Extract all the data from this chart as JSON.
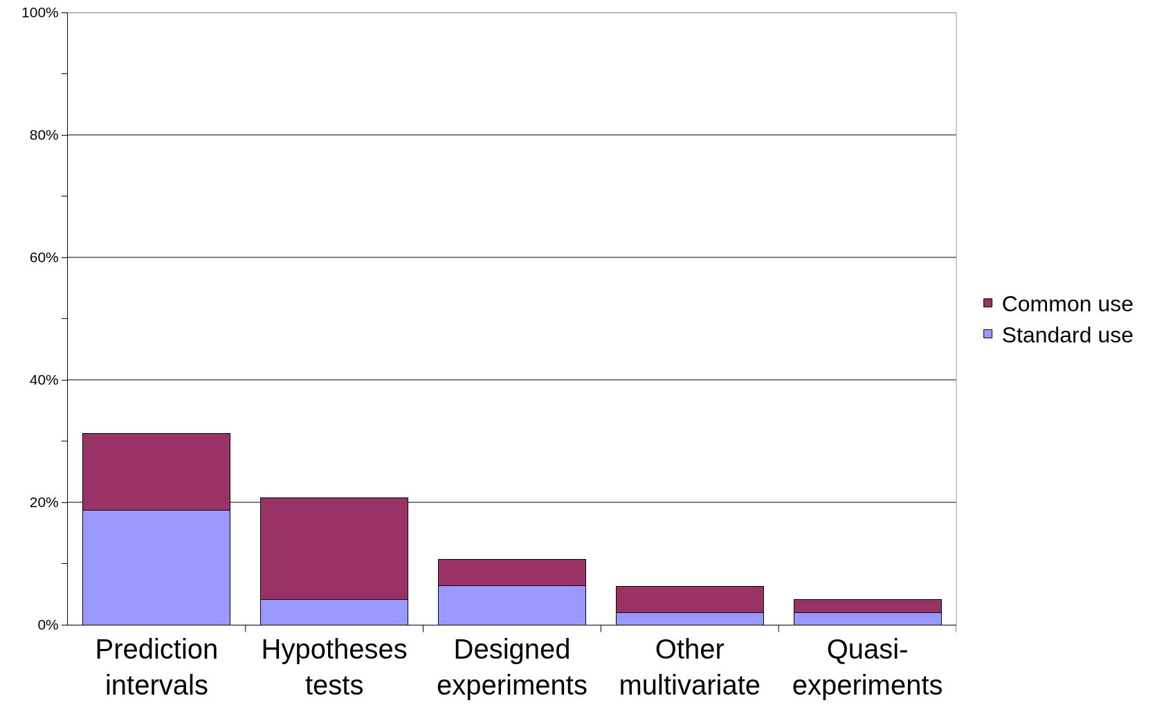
{
  "chart_data": {
    "type": "bar",
    "stacked": true,
    "categories": [
      "Prediction\nintervals",
      "Hypotheses\ntests",
      "Designed\nexperiments",
      "Other\nmultivariate",
      "Quasi-\nexperiments"
    ],
    "series": [
      {
        "name": "Standard use",
        "color": "#9999ff",
        "values": [
          18.7,
          4.1,
          6.4,
          2.0,
          2.0
        ]
      },
      {
        "name": "Common use",
        "color": "#993366",
        "values": [
          12.5,
          16.6,
          4.3,
          4.3,
          2.1
        ]
      }
    ],
    "ylim": [
      0,
      100
    ],
    "yticks": [
      {
        "value": 0,
        "label": "0%"
      },
      {
        "value": 10,
        "label": null
      },
      {
        "value": 20,
        "label": "20%"
      },
      {
        "value": 30,
        "label": null
      },
      {
        "value": 40,
        "label": "40%"
      },
      {
        "value": 50,
        "label": null
      },
      {
        "value": 60,
        "label": "60%"
      },
      {
        "value": 70,
        "label": null
      },
      {
        "value": 80,
        "label": "80%"
      },
      {
        "value": 90,
        "label": null
      },
      {
        "value": 100,
        "label": "100%"
      }
    ],
    "grid": "y",
    "legend": "right"
  }
}
